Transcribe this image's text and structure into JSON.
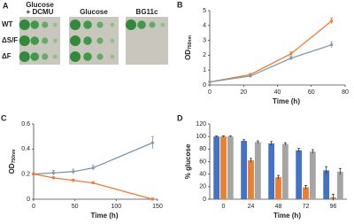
{
  "panel_a": {
    "label": "A",
    "columns": [
      [
        "Glucose",
        "+ DCMU"
      ],
      [
        "Glucose"
      ],
      [
        "BG11c"
      ]
    ],
    "rows": [
      "WT",
      "ΔS/F",
      "ΔF"
    ]
  },
  "chart_data": [
    {
      "type": "line",
      "panel_label": "B",
      "xlabel": "Time (h)",
      "ylabel": "OD",
      "ylabel_sub": "750nm",
      "x": [
        0,
        24,
        48,
        72
      ],
      "series": [
        {
          "color": "#ed7d31",
          "values": [
            0.2,
            0.7,
            2.1,
            4.3
          ],
          "errors": [
            0.03,
            0.08,
            0.15,
            0.2
          ]
        },
        {
          "color": "#8497b0",
          "values": [
            0.2,
            0.6,
            1.8,
            2.7
          ],
          "errors": [
            0.03,
            0.06,
            0.12,
            0.2
          ]
        }
      ],
      "xlim": [
        0,
        80
      ],
      "xticks": [
        0,
        20,
        40,
        60,
        80
      ],
      "ylim": [
        0,
        5
      ],
      "yticks": [
        0,
        1,
        2,
        3,
        4,
        5
      ]
    },
    {
      "type": "line",
      "panel_label": "C",
      "xlabel": "Time (h)",
      "ylabel": "OD",
      "ylabel_sub": "750nm",
      "x": [
        0,
        24,
        48,
        72,
        144
      ],
      "series": [
        {
          "color": "#8497b0",
          "values": [
            0.2,
            0.21,
            0.22,
            0.25,
            0.45
          ],
          "errors": [
            0.01,
            0.02,
            0.02,
            0.02,
            0.05
          ]
        },
        {
          "color": "#ed7d31",
          "values": [
            0.2,
            0.17,
            0.15,
            0.13,
            0.0
          ],
          "errors": [
            0.01,
            0.01,
            0.01,
            0.01,
            0.01
          ]
        }
      ],
      "xlim": [
        0,
        150
      ],
      "xticks": [
        0,
        50,
        100,
        150
      ],
      "ylim": [
        0,
        0.6
      ],
      "yticks": [
        0,
        0.2,
        0.4,
        0.6
      ]
    },
    {
      "type": "bar",
      "panel_label": "D",
      "xlabel": "Time (h)",
      "ylabel": "% glucose",
      "categories": [
        "0",
        "24",
        "48",
        "72",
        "96"
      ],
      "series": [
        {
          "color": "#4472c4",
          "values": [
            100,
            93,
            89,
            78,
            46
          ],
          "errors": [
            1,
            2,
            3,
            3,
            6
          ]
        },
        {
          "color": "#ed7d31",
          "values": [
            100,
            62,
            35,
            19,
            3
          ],
          "errors": [
            1,
            3,
            3,
            3,
            5
          ]
        },
        {
          "color": "#a5a5a5",
          "values": [
            100,
            91,
            88,
            76,
            44
          ],
          "errors": [
            1,
            2,
            2,
            3,
            5
          ]
        }
      ],
      "ylim": [
        0,
        120
      ],
      "yticks": [
        0,
        20,
        40,
        60,
        80,
        100,
        120
      ]
    }
  ]
}
